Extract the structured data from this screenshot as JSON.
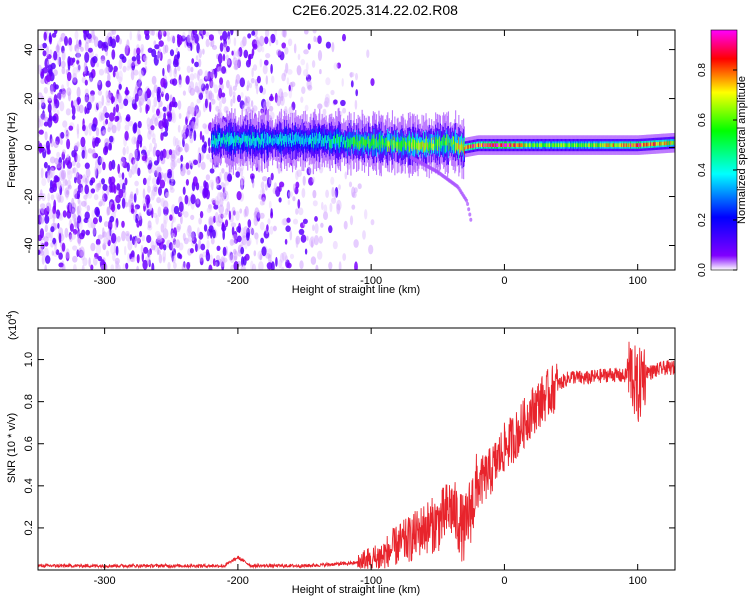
{
  "figure": {
    "title": "C2E6.2025.314.22.02.R08"
  },
  "chart_data": [
    {
      "type": "heatmap",
      "title": "C2E6.2025.314.22.02.R08",
      "xlabel": "Height of straight line (km)",
      "ylabel": "Frequency (Hz)",
      "xlim": [
        -350,
        128
      ],
      "ylim": [
        -50,
        48
      ],
      "x_ticks": [
        -300,
        -200,
        -100,
        0,
        100
      ],
      "x_tick_labels": [
        "-300",
        "-200",
        "-100",
        "0",
        "100"
      ],
      "y_ticks": [
        -40,
        -20,
        0,
        20,
        40
      ],
      "y_tick_labels": [
        "-40",
        "-20",
        "0",
        "20",
        "40"
      ],
      "colorbar": {
        "label": "Normalized spectral amplitude",
        "range": [
          0,
          0.96
        ],
        "ticks": [
          0.0,
          0.2,
          0.4,
          0.6,
          0.8
        ],
        "tick_labels": [
          "0.0",
          "0.2",
          "0.4",
          "0.6",
          "0.8"
        ],
        "colormap": [
          "#ffffff",
          "#8000ff",
          "#0000ff",
          "#00ffff",
          "#00ff00",
          "#ffff00",
          "#ff0000",
          "#ff00ff"
        ]
      },
      "features": {
        "diffuse_scatter_x": [
          -350,
          -115
        ],
        "main_echo_band": {
          "x": [
            -220,
            -150,
            -100,
            -60,
            -40,
            -30,
            -20,
            0,
            20,
            60,
            100,
            128
          ],
          "freq": [
            3,
            3,
            2,
            1,
            2,
            0,
            1,
            1,
            1,
            1,
            1,
            2
          ],
          "peak_amplitude": [
            0.45,
            0.4,
            0.6,
            0.7,
            0.6,
            0.85,
            0.9,
            0.95,
            0.65,
            0.65,
            0.9,
            0.7
          ]
        },
        "secondary_trace": {
          "x": [
            -70,
            -50,
            -35,
            -28,
            -25
          ],
          "freq": [
            -4,
            -10,
            -16,
            -22,
            -30
          ]
        }
      },
      "grid": false
    },
    {
      "type": "line",
      "xlabel": "Height of straight line (km)",
      "ylabel": "SNR (10 * v/v)",
      "y_multiplier": "(x10",
      "y_multiplier_exponent": "4",
      "y_multiplier_close": ")",
      "xlim": [
        -350,
        128
      ],
      "ylim": [
        0,
        1.15
      ],
      "x_ticks": [
        -300,
        -200,
        -100,
        0,
        100
      ],
      "x_tick_labels": [
        "-300",
        "-200",
        "-100",
        "0",
        "100"
      ],
      "y_ticks": [
        0.2,
        0.4,
        0.6,
        0.8,
        1.0
      ],
      "y_tick_labels": [
        "0.2",
        "0.4",
        "0.6",
        "0.8",
        "1.0"
      ],
      "series": [
        {
          "color": "#e8242c",
          "x": [
            -350,
            -300,
            -250,
            -210,
            -200,
            -190,
            -150,
            -120,
            -100,
            -90,
            -80,
            -70,
            -60,
            -50,
            -40,
            -30,
            -25,
            -20,
            -10,
            0,
            10,
            20,
            30,
            40,
            50,
            60,
            70,
            80,
            90,
            95,
            100,
            105,
            110,
            120,
            128
          ],
          "y": [
            0.02,
            0.02,
            0.02,
            0.02,
            0.06,
            0.02,
            0.02,
            0.03,
            0.04,
            0.07,
            0.12,
            0.15,
            0.2,
            0.22,
            0.3,
            0.18,
            0.3,
            0.4,
            0.47,
            0.58,
            0.65,
            0.75,
            0.82,
            0.88,
            0.92,
            0.91,
            0.92,
            0.93,
            0.92,
            0.95,
            0.85,
            0.95,
            0.94,
            0.96,
            0.96
          ]
        }
      ],
      "grid": false
    }
  ]
}
